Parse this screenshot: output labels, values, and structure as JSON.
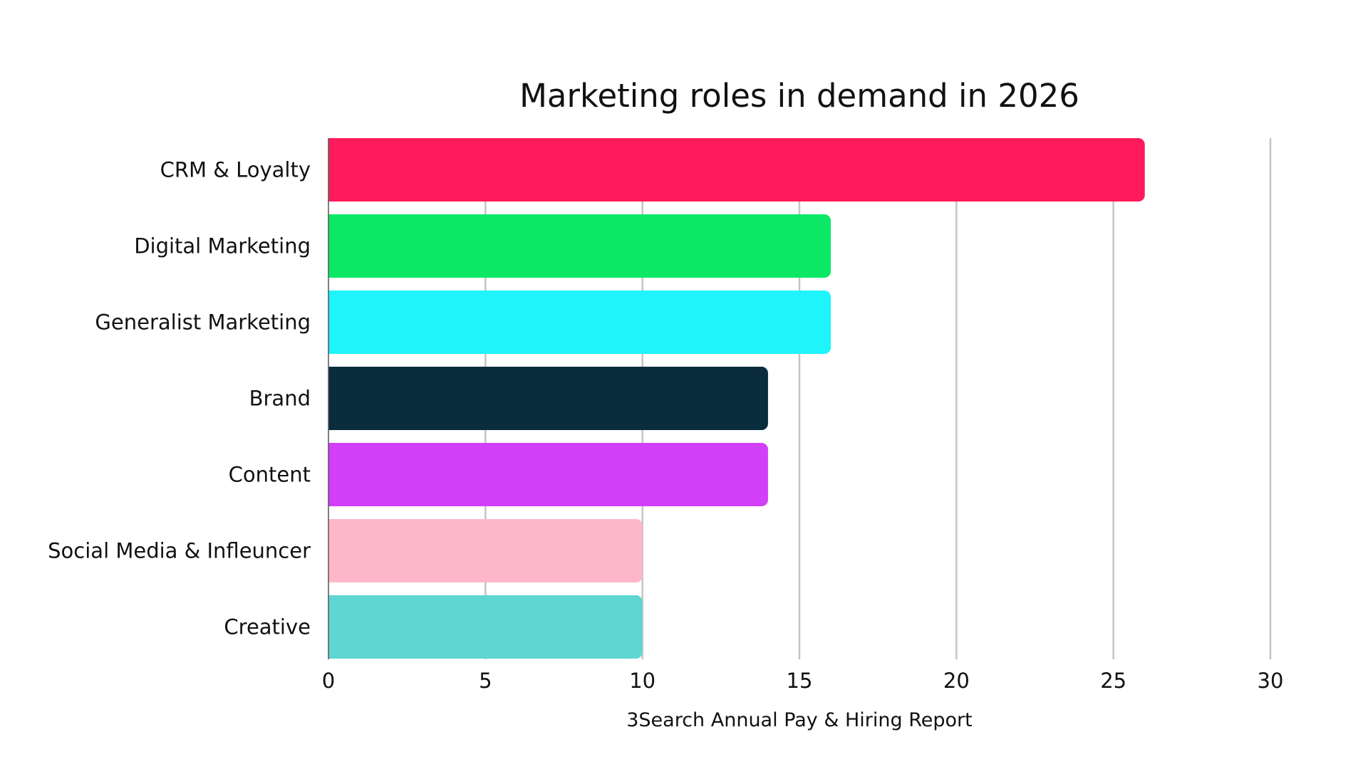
{
  "chart_data": {
    "type": "bar",
    "orientation": "horizontal",
    "title": "Marketing roles in demand in 2026",
    "xlabel": "3Search Annual Pay & Hiring Report",
    "ylabel": "",
    "xlim": [
      0,
      30
    ],
    "xticks": [
      0,
      5,
      10,
      15,
      20,
      25,
      30
    ],
    "grid": "vertical",
    "legend": "none",
    "categories": [
      "CRM & Loyalty",
      "Digital Marketing",
      "Generalist Marketing",
      "Brand",
      "Content",
      "Social Media & Infleuncer",
      "Creative"
    ],
    "values": [
      26,
      16,
      16,
      14,
      14,
      10,
      10
    ],
    "colors": [
      "#ff1a5b",
      "#0ce866",
      "#1ff4fb",
      "#0a2d3d",
      "#d23ff9",
      "#fdb7c8",
      "#5fd6d2"
    ]
  }
}
